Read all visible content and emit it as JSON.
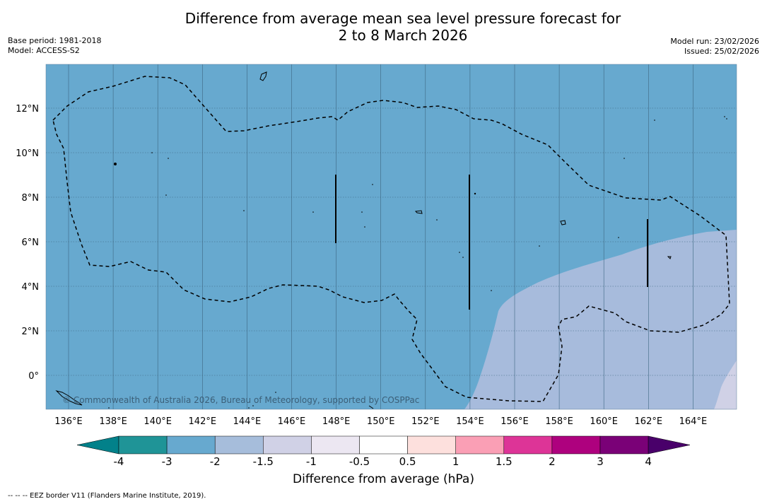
{
  "header": {
    "title_line1": "Difference from average mean sea level pressure forecast for",
    "title_line2": "2 to 8 March 2026",
    "base_period": "Base period: 1981-2018",
    "model": "Model: ACCESS-S2",
    "model_run": "Model run: 23/02/2026",
    "issued": "Issued: 25/02/2026"
  },
  "map": {
    "longitude_labels": [
      "136°E",
      "138°E",
      "140°E",
      "142°E",
      "144°E",
      "146°E",
      "148°E",
      "150°E",
      "152°E",
      "154°E",
      "156°E",
      "158°E",
      "160°E",
      "162°E",
      "164°E"
    ],
    "latitude_labels": [
      "12°N",
      "10°N",
      "8°N",
      "6°N",
      "4°N",
      "2°N",
      "0°"
    ],
    "copyright": "© Commonwealth of Australia 2026, Bureau of Meteorology, supported by COSPPac",
    "colors": {
      "ocean_band": "#67a9cf",
      "band_light": "#a7bbdc",
      "band_lighter": "#d0d1e6"
    }
  },
  "colorbar": {
    "labels": [
      "-4",
      "-3",
      "-2",
      "-1.5",
      "-1",
      "-0.5",
      "0.5",
      "1",
      "1.5",
      "2",
      "3",
      "4"
    ],
    "colors": [
      "#02818a",
      "#1f9497",
      "#67a9cf",
      "#a6bddb",
      "#d0d1e6",
      "#ece7f2",
      "#ffffff",
      "#fde0dd",
      "#fa9fb5",
      "#dd3497",
      "#ae017e",
      "#7a0177",
      "#49006a"
    ],
    "title": "Difference from average (hPa)"
  },
  "footnote": "--  --  -- EEZ border V11 (Flanders Marine Institute, 2019)."
}
